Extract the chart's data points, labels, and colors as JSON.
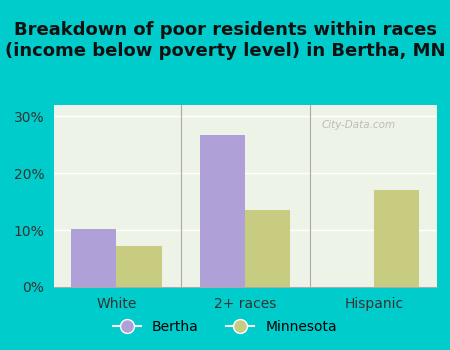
{
  "title": "Breakdown of poor residents within races\n(income below poverty level) in Bertha, MN",
  "categories": [
    "White",
    "2+ races",
    "Hispanic"
  ],
  "bertha_values": [
    10.2,
    26.8,
    0
  ],
  "minnesota_values": [
    7.2,
    13.5,
    17.0
  ],
  "bertha_color": "#b0a0d8",
  "minnesota_color": "#c8cc80",
  "background_color": "#00cccc",
  "plot_bg": "#eef3e8",
  "ylim": [
    0,
    32
  ],
  "yticks": [
    0,
    10,
    20,
    30
  ],
  "ytick_labels": [
    "0%",
    "10%",
    "20%",
    "30%"
  ],
  "bar_width": 0.35,
  "title_fontsize": 13,
  "legend_bertha": "Bertha",
  "legend_minnesota": "Minnesota",
  "watermark": "City-Data.com"
}
